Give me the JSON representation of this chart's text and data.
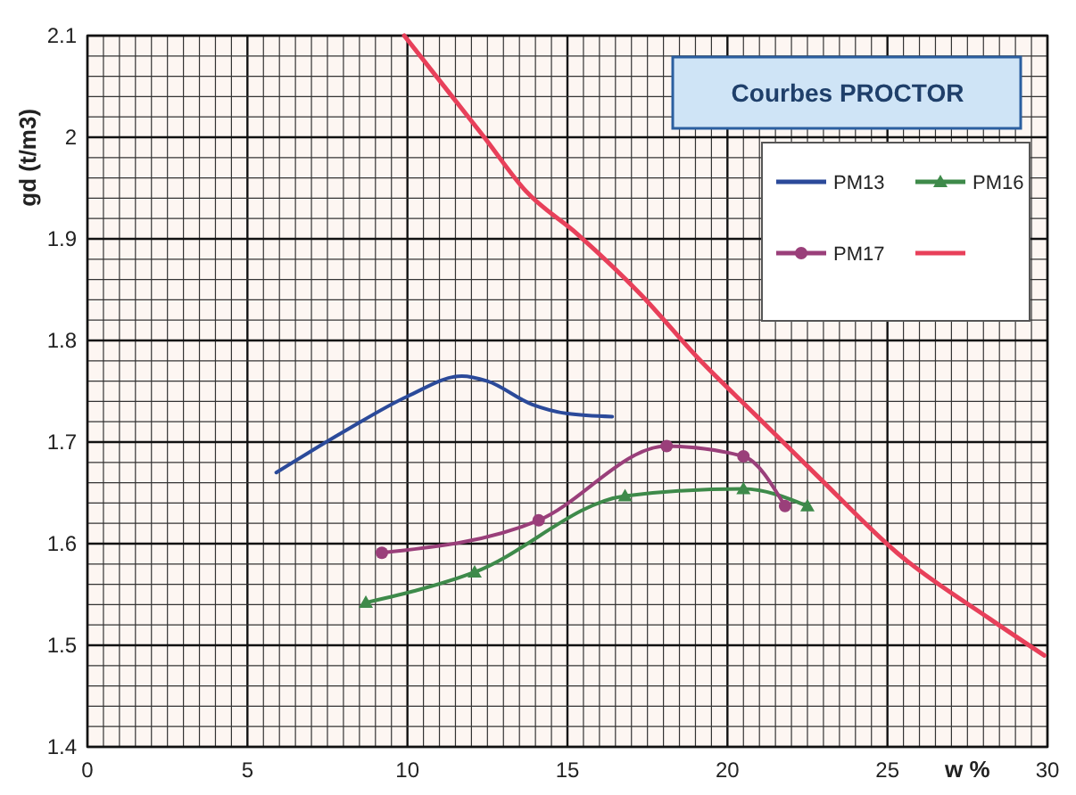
{
  "chart_data": {
    "type": "line",
    "title": "Courbes PROCTOR",
    "xlabel": "w %",
    "ylabel": "gd (t/m3)",
    "xlim": [
      0,
      30
    ],
    "xticks": [
      0,
      5,
      10,
      15,
      20,
      25,
      30
    ],
    "ylim": [
      1.4,
      2.1
    ],
    "yticks": [
      1.4,
      1.5,
      1.6,
      1.7,
      1.8,
      1.9,
      {
        "value": 2,
        "label": "2"
      },
      2.1
    ],
    "grid": true,
    "legend": "top right",
    "series": [
      {
        "name": "PM13",
        "color": "#2b4a9a",
        "marker": "none",
        "x": [
          5.9,
          8,
          10,
          11.7,
          12.5,
          13.9,
          15,
          16.4
        ],
        "values": [
          1.67,
          1.71,
          1.745,
          1.765,
          1.76,
          1.737,
          1.728,
          1.725
        ]
      },
      {
        "name": "PM16",
        "color": "#3e8a4a",
        "marker": "triangle",
        "x": [
          8.7,
          12.1,
          16.8,
          20.5,
          22.5
        ],
        "values": [
          1.542,
          1.572,
          1.647,
          1.654,
          1.637
        ]
      },
      {
        "name": "PM17",
        "color": "#9a3f7a",
        "marker": "circle",
        "x": [
          9.2,
          14.1,
          18.1,
          20.5,
          21.8
        ],
        "values": [
          1.591,
          1.623,
          1.696,
          1.686,
          1.637
        ]
      },
      {
        "color": "#e8405a",
        "marker": "none",
        "x": [
          9.9,
          12.4,
          13.7,
          15.3,
          17.3,
          19.1,
          20.9,
          22.8,
          25.3,
          28.2,
          29.9
        ],
        "values": [
          2.1,
          2.0,
          1.947,
          1.905,
          1.845,
          1.782,
          1.726,
          1.667,
          1.591,
          1.526,
          1.49
        ]
      }
    ]
  }
}
